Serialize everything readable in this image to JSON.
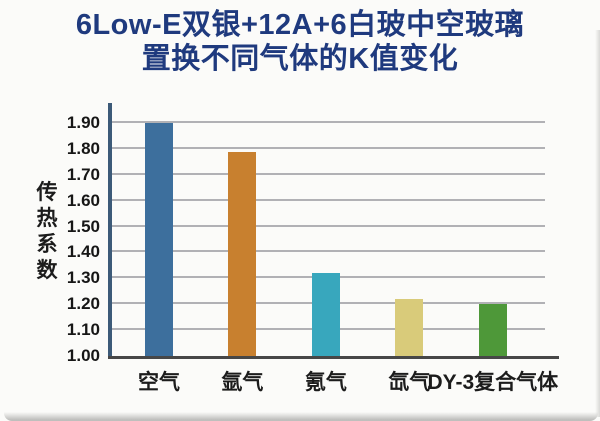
{
  "title": {
    "line1": "6Low-E双银+12A+6白玻中空玻璃",
    "line2": "置换不同气体的K值变化"
  },
  "chart_data": {
    "type": "bar",
    "title": "6Low-E双银+12A+6白玻中空玻璃 置换不同气体的K值变化",
    "ylabel": "传热系数",
    "xlabel": "",
    "categories": [
      "空气",
      "氩气",
      "氪气",
      "氙气",
      "DY-3复合气体"
    ],
    "values": [
      1.9,
      1.79,
      1.32,
      1.22,
      1.2
    ],
    "bar_colors": [
      "#3d6f9d",
      "#c8802f",
      "#38a7bd",
      "#d9cb7a",
      "#4e9839"
    ],
    "ylim": [
      1.0,
      1.9
    ],
    "ytick_labels": [
      "1.00",
      "1.10",
      "1.20",
      "1.30",
      "1.40",
      "1.50",
      "1.60",
      "1.70",
      "1.80",
      "1.90"
    ],
    "grid": true,
    "legend": false
  },
  "colors": {
    "title_text": "#1f3a7e",
    "axis_y": "#3c5a78",
    "axis_x": "#474747",
    "gridline": "#98989e",
    "background": "#fbfbf9",
    "label_text": "#1c1c1c"
  }
}
